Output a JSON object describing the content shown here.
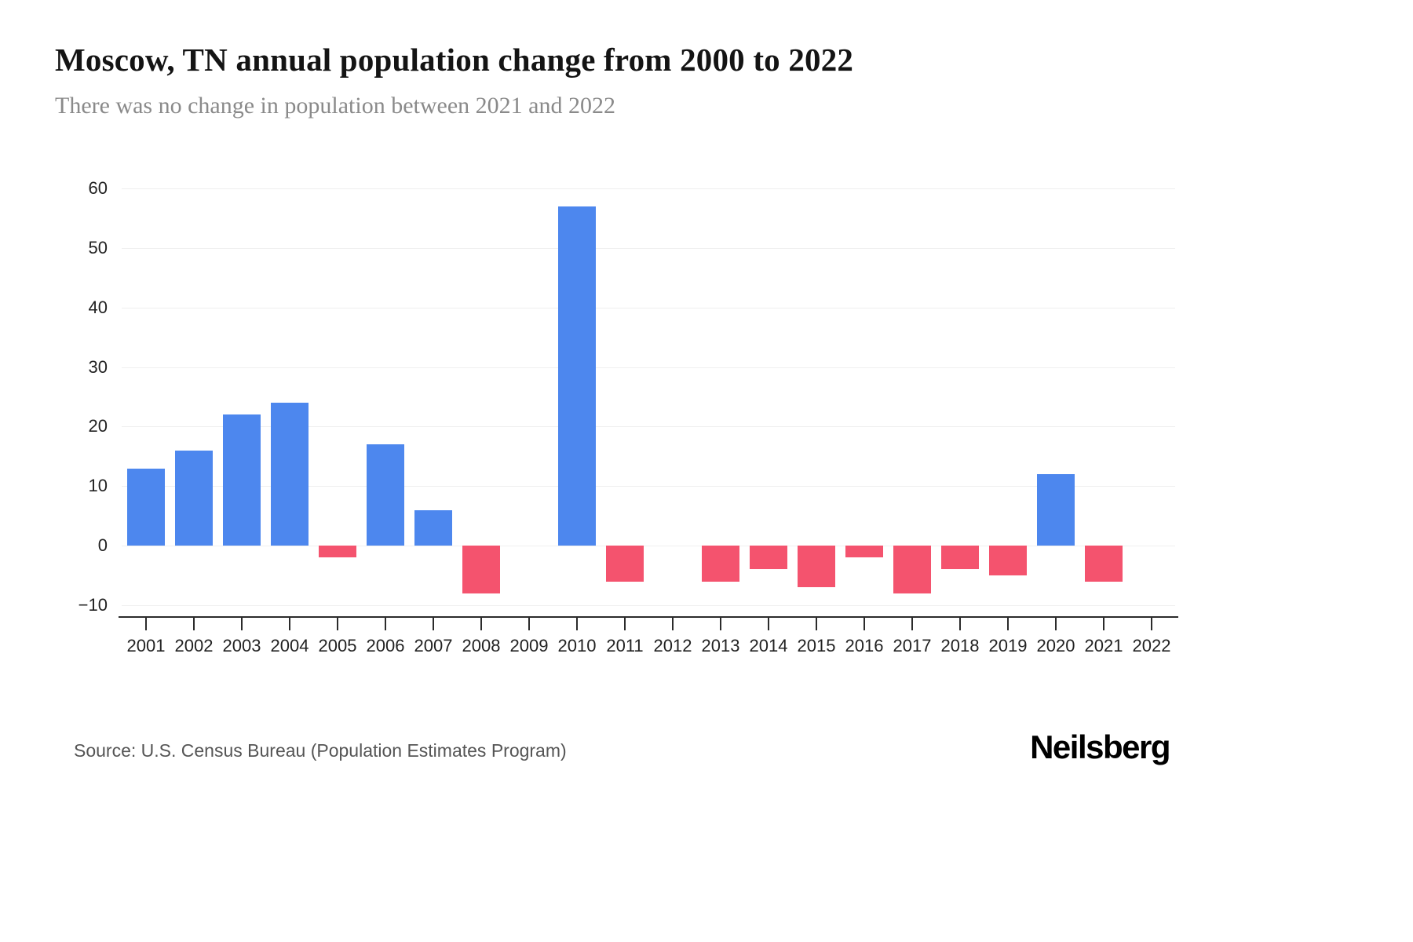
{
  "header": {
    "title": "Moscow, TN annual population change from 2000 to 2022",
    "subtitle": "There was no change in population between 2021 and 2022"
  },
  "footer": {
    "source": "Source: U.S. Census Bureau (Population Estimates Program)",
    "brand": "Neilsberg"
  },
  "chart_data": {
    "type": "bar",
    "title": "Moscow, TN annual population change from 2000 to 2022",
    "subtitle": "There was no change in population between 2021 and 2022",
    "categories": [
      "2001",
      "2002",
      "2003",
      "2004",
      "2005",
      "2006",
      "2007",
      "2008",
      "2009",
      "2010",
      "2011",
      "2012",
      "2013",
      "2014",
      "2015",
      "2016",
      "2017",
      "2018",
      "2019",
      "2020",
      "2021",
      "2022"
    ],
    "values": [
      13,
      16,
      22,
      24,
      -2,
      17,
      6,
      -8,
      0,
      57,
      -6,
      0,
      -6,
      -4,
      -7,
      -2,
      -8,
      -4,
      -5,
      12,
      -6,
      0
    ],
    "xlabel": "",
    "ylabel": "",
    "ylim": [
      -10,
      60
    ],
    "yticks": [
      -10,
      0,
      10,
      20,
      30,
      40,
      50,
      60
    ],
    "grid": true,
    "legend": false,
    "colors": {
      "positive": "#4d87ee",
      "negative": "#f4536e"
    }
  }
}
